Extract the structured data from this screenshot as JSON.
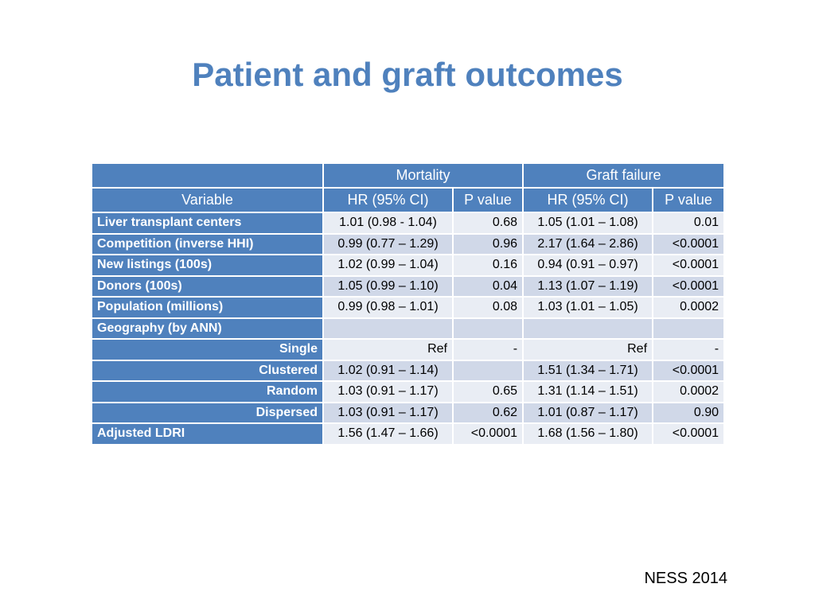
{
  "title": "Patient and graft outcomes",
  "footer": "NESS 2014",
  "header": {
    "group_row": {
      "variable_blank": "",
      "mortality": "Mortality",
      "graft_failure": "Graft failure"
    },
    "columns": {
      "variable": "Variable",
      "m_hr": "HR (95% CI)",
      "m_p": "P value",
      "g_hr": "HR (95% CI)",
      "g_p": "P value"
    }
  },
  "rows": [
    {
      "variable": "Liver transplant centers",
      "m_hr": "1.01 (0.98  - 1.04)",
      "m_p": "0.68",
      "g_hr": "1.05 (1.01 – 1.08)",
      "g_p": "0.01"
    },
    {
      "variable": "Competition (inverse HHI)",
      "m_hr": "0.99 (0.77 – 1.29)",
      "m_p": "0.96",
      "g_hr": "2.17 (1.64 – 2.86)",
      "g_p": "<0.0001"
    },
    {
      "variable": "New listings (100s)",
      "m_hr": "1.02 (0.99 – 1.04)",
      "m_p": "0.16",
      "g_hr": "0.94 (0.91 – 0.97)",
      "g_p": "<0.0001"
    },
    {
      "variable": "Donors (100s)",
      "m_hr": "1.05 (0.99 – 1.10)",
      "m_p": "0.04",
      "g_hr": "1.13 (1.07 – 1.19)",
      "g_p": "<0.0001"
    },
    {
      "variable": "Population (millions)",
      "m_hr": "0.99 (0.98 – 1.01)",
      "m_p": "0.08",
      "g_hr": "1.03 (1.01 – 1.05)",
      "g_p": "0.0002"
    },
    {
      "variable": "Geography (by ANN)",
      "m_hr": "",
      "m_p": "",
      "g_hr": "",
      "g_p": ""
    },
    {
      "variable": "Single",
      "m_hr": "Ref",
      "m_p": "-",
      "g_hr": "Ref",
      "g_p": "-"
    },
    {
      "variable": "Clustered",
      "m_hr": "1.02 (0.91 – 1.14)",
      "m_p": "",
      "g_hr": "1.51 (1.34 – 1.71)",
      "g_p": "<0.0001"
    },
    {
      "variable": "Random",
      "m_hr": "1.03 (0.91 – 1.17)",
      "m_p": "0.65",
      "g_hr": "1.31 (1.14 – 1.51)",
      "g_p": "0.0002"
    },
    {
      "variable": "Dispersed",
      "m_hr": "1.03 (0.91 – 1.17)",
      "m_p": "0.62",
      "g_hr": "1.01 (0.87 – 1.17)",
      "g_p": "0.90"
    },
    {
      "variable": "Adjusted LDRI",
      "m_hr": "1.56 (1.47 – 1.66)",
      "m_p": "<0.0001",
      "g_hr": "1.68 (1.56 – 1.80)",
      "g_p": "<0.0001"
    }
  ],
  "colors": {
    "accent": "#4f81bd",
    "cell_light": "#e9edf4",
    "cell_dark": "#d0d8e8"
  }
}
